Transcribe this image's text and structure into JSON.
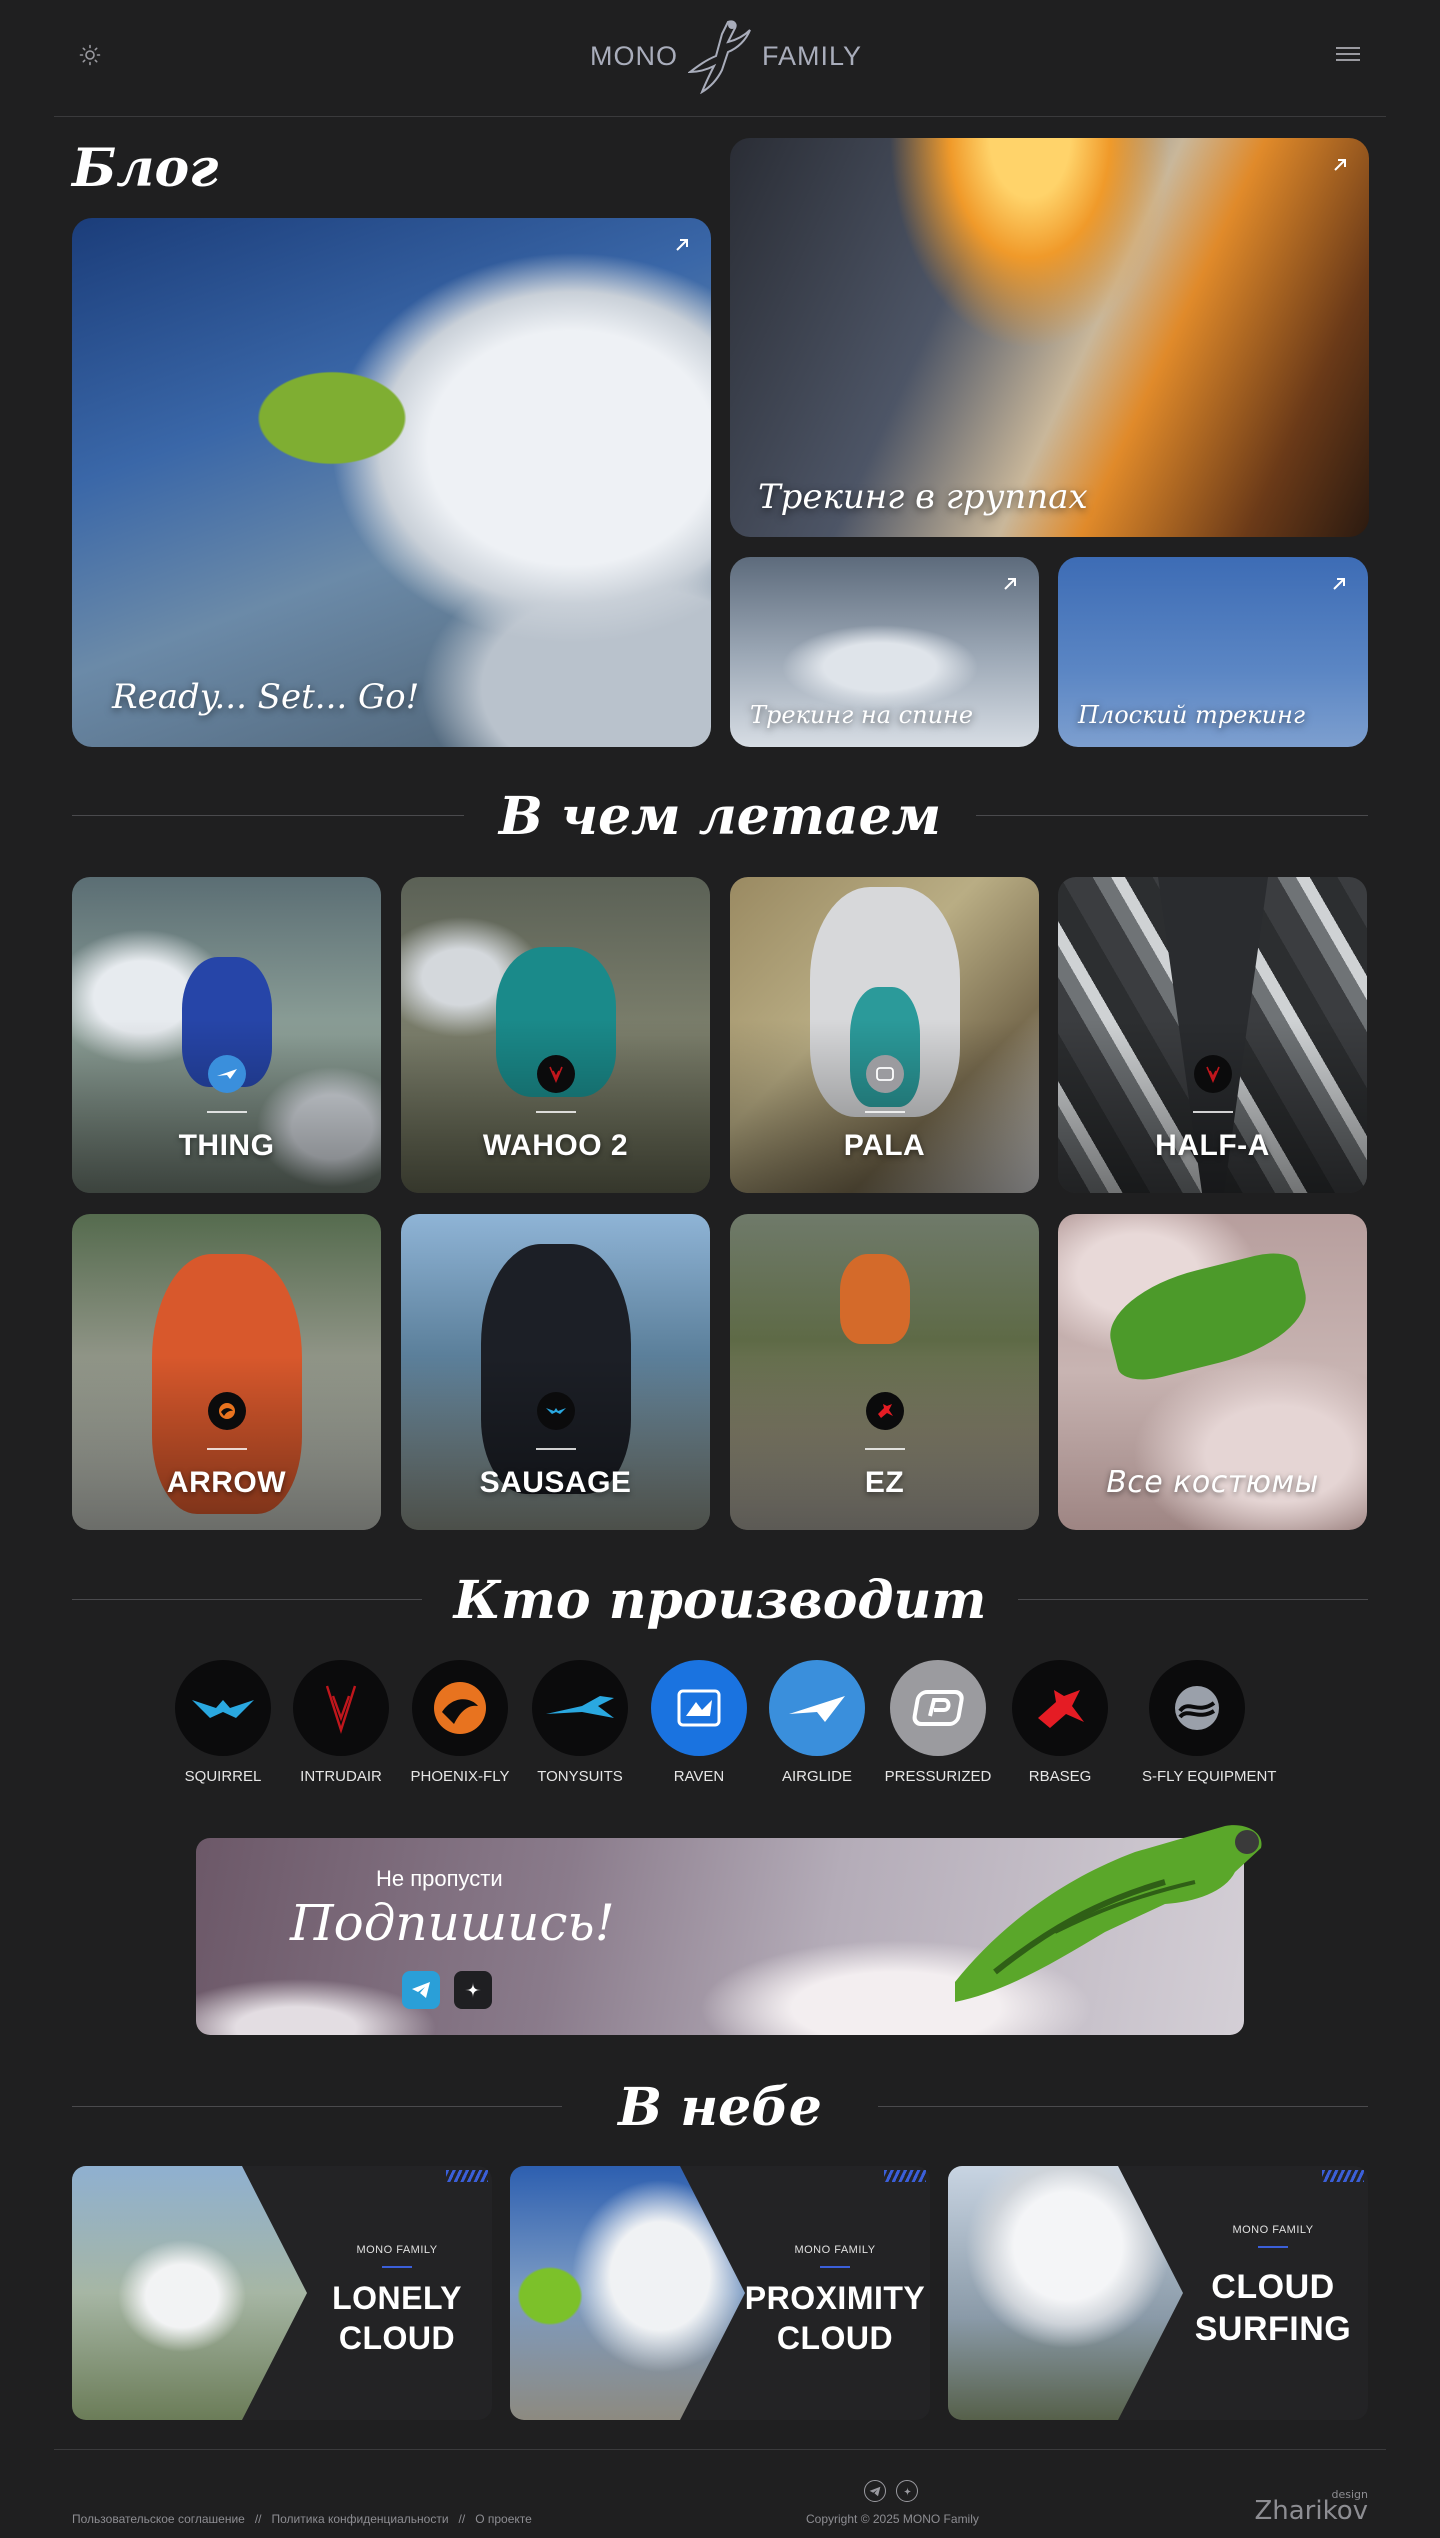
{
  "header": {
    "logo_left": "MONO",
    "logo_right": "FAMILY",
    "theme_icon": "sun-icon",
    "menu_icon": "hamburger-icon"
  },
  "blog": {
    "title": "Блог",
    "posts": [
      {
        "caption": "Ready... Set... Go!"
      },
      {
        "caption": "Трекинг в группах"
      },
      {
        "caption": "Трекинг на спине"
      },
      {
        "caption": "Плоский трекинг"
      }
    ]
  },
  "suits": {
    "title": "В чем летаем",
    "items": [
      {
        "name": "THING"
      },
      {
        "name": "WAHOO 2"
      },
      {
        "name": "PALA"
      },
      {
        "name": "HALF-A"
      },
      {
        "name": "ARROW"
      },
      {
        "name": "SAUSAGE"
      },
      {
        "name": "EZ"
      }
    ],
    "all_label": "Все костюмы"
  },
  "makers": {
    "title": "Кто производит",
    "items": [
      {
        "name": "SQUIRREL",
        "bg": "#0b0b0c"
      },
      {
        "name": "INTRUDAIR",
        "bg": "#0b0b0c"
      },
      {
        "name": "PHOENIX-FLY",
        "bg": "#0b0b0c"
      },
      {
        "name": "TONYSUITS",
        "bg": "#0b0b0c"
      },
      {
        "name": "RAVEN",
        "bg": "#1a73e0"
      },
      {
        "name": "AIRGLIDE",
        "bg": "#3a8fdc"
      },
      {
        "name": "PRESSURIZED",
        "bg": "#9b9b9f"
      },
      {
        "name": "RBASEG",
        "bg": "#0b0b0c"
      },
      {
        "name": "S-FLY EQUIPMENT",
        "bg": "#0b0b0c"
      }
    ]
  },
  "subscribe": {
    "pre": "Не пропусти",
    "title": "Подпишись!"
  },
  "sky": {
    "title": "В небе",
    "items": [
      {
        "brand": "MONO FAMILY",
        "line1": "LONELY",
        "line2": "CLOUD"
      },
      {
        "brand": "MONO FAMILY",
        "line1": "PROXIMITY",
        "line2": "CLOUD"
      },
      {
        "brand": "MONO FAMILY",
        "line1": "CLOUD",
        "line2": "SURFING"
      }
    ]
  },
  "footer": {
    "links": [
      "Пользовательское соглашение",
      "Политика конфиденциальности",
      "О проекте"
    ],
    "separator": "//",
    "copyright": "Copyright © 2025 MONO Family",
    "developer": "Zharikov",
    "developer_sub": "design"
  }
}
